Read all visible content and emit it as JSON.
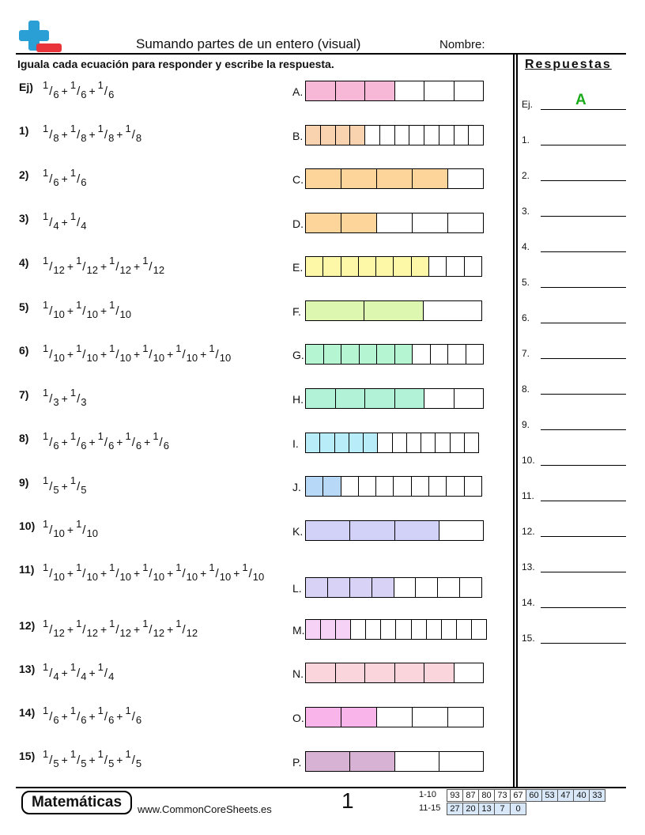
{
  "header": {
    "title": "Sumando partes de un entero (visual)",
    "name_label": "Nombre:",
    "instructions": "Iguala cada ecuación para responder y escribe la respuesta.",
    "answers_title": "Respuestas"
  },
  "questions": [
    {
      "label": "Ej)",
      "n": 3,
      "d": 6
    },
    {
      "label": "1)",
      "n": 4,
      "d": 8
    },
    {
      "label": "2)",
      "n": 2,
      "d": 6
    },
    {
      "label": "3)",
      "n": 2,
      "d": 4
    },
    {
      "label": "4)",
      "n": 4,
      "d": 12
    },
    {
      "label": "5)",
      "n": 3,
      "d": 10
    },
    {
      "label": "6)",
      "n": 6,
      "d": 10
    },
    {
      "label": "7)",
      "n": 2,
      "d": 3
    },
    {
      "label": "8)",
      "n": 5,
      "d": 6
    },
    {
      "label": "9)",
      "n": 2,
      "d": 5
    },
    {
      "label": "10)",
      "n": 2,
      "d": 10
    },
    {
      "label": "11)",
      "n": 7,
      "d": 10
    },
    {
      "label": "12)",
      "n": 5,
      "d": 12
    },
    {
      "label": "13)",
      "n": 3,
      "d": 4
    },
    {
      "label": "14)",
      "n": 4,
      "d": 6
    },
    {
      "label": "15)",
      "n": 4,
      "d": 5
    }
  ],
  "bars": [
    {
      "letter": "A.",
      "cells": 6,
      "filled": 3,
      "color": "#f7b8d8"
    },
    {
      "letter": "B.",
      "cells": 12,
      "filled": 4,
      "color": "#f9d2b0"
    },
    {
      "letter": "C.",
      "cells": 5,
      "filled": 4,
      "color": "#fdd59a"
    },
    {
      "letter": "D.",
      "cells": 5,
      "filled": 2,
      "color": "#fdd59a"
    },
    {
      "letter": "E.",
      "cells": 10,
      "filled": 7,
      "color": "#fdf8a8"
    },
    {
      "letter": "F.",
      "cells": 3,
      "filled": 2,
      "color": "#ddf7b0"
    },
    {
      "letter": "G.",
      "cells": 10,
      "filled": 6,
      "color": "#b6f5d2"
    },
    {
      "letter": "H.",
      "cells": 6,
      "filled": 4,
      "color": "#b2f2d6"
    },
    {
      "letter": "I.",
      "cells": 12,
      "filled": 5,
      "color": "#b8ecf8"
    },
    {
      "letter": "J.",
      "cells": 10,
      "filled": 2,
      "color": "#b8d8f8"
    },
    {
      "letter": "K.",
      "cells": 4,
      "filled": 3,
      "color": "#d2d2f8"
    },
    {
      "letter": "L.",
      "cells": 8,
      "filled": 4,
      "color": "#d8d2f6"
    },
    {
      "letter": "M.",
      "cells": 12,
      "filled": 3,
      "color": "#f6d2f6"
    },
    {
      "letter": "N.",
      "cells": 6,
      "filled": 5,
      "color": "#fad6dc"
    },
    {
      "letter": "O.",
      "cells": 5,
      "filled": 2,
      "color": "#f9b4ea"
    },
    {
      "letter": "P.",
      "cells": 4,
      "filled": 2,
      "color": "#d8b2d4"
    }
  ],
  "answers": {
    "example_label": "Ej.",
    "example_answer": "A",
    "labels": [
      "1.",
      "2.",
      "3.",
      "4.",
      "5.",
      "6.",
      "7.",
      "8.",
      "9.",
      "10.",
      "11.",
      "12.",
      "13.",
      "14.",
      "15."
    ]
  },
  "footer": {
    "brand": "Matemáticas",
    "site": "www.CommonCoreSheets.es",
    "page_number": "1",
    "score_rows": [
      {
        "label": "1-10",
        "values": [
          "93",
          "87",
          "80",
          "73",
          "67",
          "60",
          "53",
          "47",
          "40",
          "33"
        ]
      },
      {
        "label": "11-15",
        "values": [
          "27",
          "20",
          "13",
          "7",
          "0"
        ]
      }
    ]
  },
  "colors": {
    "example_answer": "#1aaa1a",
    "score_shade": "#d8e8f8"
  }
}
